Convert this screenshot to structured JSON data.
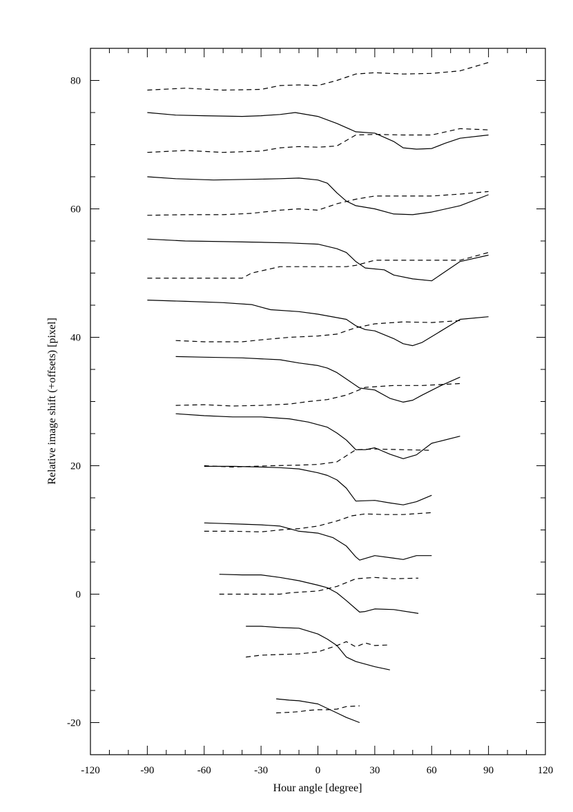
{
  "chart_data": {
    "type": "line",
    "title": "",
    "xlabel": "Hour angle [degree]",
    "ylabel": "Relative image shift (+offsets) [pixel]",
    "xlim": [
      -120,
      120
    ],
    "ylim": [
      -25,
      85
    ],
    "x_ticks": [
      "-120",
      "-90",
      "-60",
      "-30",
      "0",
      "30",
      "60",
      "90",
      "120"
    ],
    "y_ticks": [
      "-20",
      "0",
      "20",
      "40",
      "60",
      "80"
    ],
    "grid": false,
    "legend": "none",
    "series": [
      {
        "style": "dashed",
        "points": [
          [
            -90,
            78.5
          ],
          [
            -70,
            78.8
          ],
          [
            -50,
            78.5
          ],
          [
            -30,
            78.6
          ],
          [
            -20,
            79.2
          ],
          [
            -10,
            79.3
          ],
          [
            0,
            79.2
          ],
          [
            10,
            80
          ],
          [
            20,
            81
          ],
          [
            30,
            81.2
          ],
          [
            45,
            81
          ],
          [
            60,
            81.1
          ],
          [
            75,
            81.5
          ],
          [
            90,
            82.8
          ]
        ]
      },
      {
        "style": "solid",
        "points": [
          [
            -90,
            75
          ],
          [
            -75,
            74.6
          ],
          [
            -60,
            74.5
          ],
          [
            -40,
            74.4
          ],
          [
            -30,
            74.5
          ],
          [
            -20,
            74.7
          ],
          [
            -12,
            75
          ],
          [
            0,
            74.4
          ],
          [
            10,
            73.3
          ],
          [
            20,
            72
          ],
          [
            30,
            71.8
          ],
          [
            40,
            70.5
          ],
          [
            45,
            69.5
          ],
          [
            52,
            69.3
          ],
          [
            60,
            69.4
          ],
          [
            67,
            70.2
          ],
          [
            75,
            71
          ],
          [
            90,
            71.5
          ]
        ]
      },
      {
        "style": "dashed",
        "points": [
          [
            -90,
            68.8
          ],
          [
            -70,
            69.1
          ],
          [
            -50,
            68.8
          ],
          [
            -30,
            69
          ],
          [
            -20,
            69.5
          ],
          [
            -10,
            69.7
          ],
          [
            0,
            69.6
          ],
          [
            10,
            69.8
          ],
          [
            20,
            71.5
          ],
          [
            30,
            71.6
          ],
          [
            45,
            71.5
          ],
          [
            60,
            71.5
          ],
          [
            75,
            72.5
          ],
          [
            90,
            72.3
          ]
        ]
      },
      {
        "style": "solid",
        "points": [
          [
            -90,
            65
          ],
          [
            -75,
            64.7
          ],
          [
            -55,
            64.5
          ],
          [
            -35,
            64.6
          ],
          [
            -20,
            64.7
          ],
          [
            -10,
            64.8
          ],
          [
            0,
            64.5
          ],
          [
            5,
            64
          ],
          [
            10,
            62.5
          ],
          [
            15,
            61.2
          ],
          [
            20,
            60.5
          ],
          [
            30,
            60
          ],
          [
            40,
            59.2
          ],
          [
            50,
            59.1
          ],
          [
            60,
            59.5
          ],
          [
            75,
            60.5
          ],
          [
            90,
            62.2
          ]
        ]
      },
      {
        "style": "dashed",
        "points": [
          [
            -90,
            59
          ],
          [
            -70,
            59.1
          ],
          [
            -50,
            59.1
          ],
          [
            -35,
            59.3
          ],
          [
            -20,
            59.8
          ],
          [
            -10,
            60
          ],
          [
            0,
            59.8
          ],
          [
            10,
            60.8
          ],
          [
            20,
            61.5
          ],
          [
            30,
            62
          ],
          [
            45,
            62
          ],
          [
            60,
            62
          ],
          [
            75,
            62.3
          ],
          [
            90,
            62.7
          ]
        ]
      },
      {
        "style": "solid",
        "points": [
          [
            -90,
            55.3
          ],
          [
            -70,
            55
          ],
          [
            -50,
            54.9
          ],
          [
            -30,
            54.8
          ],
          [
            -15,
            54.7
          ],
          [
            0,
            54.5
          ],
          [
            10,
            53.8
          ],
          [
            15,
            53.2
          ],
          [
            20,
            51.8
          ],
          [
            25,
            50.8
          ],
          [
            35,
            50.5
          ],
          [
            40,
            49.7
          ],
          [
            50,
            49.1
          ],
          [
            60,
            48.8
          ],
          [
            65,
            49.8
          ],
          [
            75,
            51.8
          ],
          [
            90,
            52.8
          ]
        ]
      },
      {
        "style": "dashed",
        "points": [
          [
            -90,
            49.2
          ],
          [
            -70,
            49.2
          ],
          [
            -50,
            49.2
          ],
          [
            -40,
            49.2
          ],
          [
            -35,
            50
          ],
          [
            -20,
            51
          ],
          [
            0,
            51
          ],
          [
            15,
            51
          ],
          [
            20,
            51.2
          ],
          [
            30,
            52
          ],
          [
            45,
            52
          ],
          [
            60,
            52
          ],
          [
            75,
            52
          ],
          [
            90,
            53.2
          ]
        ]
      },
      {
        "style": "solid",
        "points": [
          [
            -90,
            45.8
          ],
          [
            -70,
            45.6
          ],
          [
            -50,
            45.4
          ],
          [
            -35,
            45.1
          ],
          [
            -25,
            44.3
          ],
          [
            -10,
            44
          ],
          [
            0,
            43.6
          ],
          [
            15,
            42.8
          ],
          [
            20,
            41.8
          ],
          [
            25,
            41.2
          ],
          [
            30,
            41
          ],
          [
            40,
            39.8
          ],
          [
            45,
            39
          ],
          [
            50,
            38.7
          ],
          [
            55,
            39.2
          ],
          [
            65,
            41
          ],
          [
            75,
            42.8
          ],
          [
            90,
            43.2
          ]
        ]
      },
      {
        "style": "dashed",
        "points": [
          [
            -75,
            39.5
          ],
          [
            -60,
            39.3
          ],
          [
            -40,
            39.3
          ],
          [
            -30,
            39.6
          ],
          [
            -15,
            40
          ],
          [
            0,
            40.2
          ],
          [
            10,
            40.5
          ],
          [
            20,
            41.5
          ],
          [
            30,
            42.1
          ],
          [
            45,
            42.4
          ],
          [
            60,
            42.3
          ],
          [
            75,
            42.6
          ]
        ]
      },
      {
        "style": "solid",
        "points": [
          [
            -75,
            37
          ],
          [
            -60,
            36.9
          ],
          [
            -40,
            36.8
          ],
          [
            -20,
            36.5
          ],
          [
            -10,
            36
          ],
          [
            0,
            35.6
          ],
          [
            5,
            35.2
          ],
          [
            10,
            34.5
          ],
          [
            15,
            33.5
          ],
          [
            22,
            32.1
          ],
          [
            30,
            31.8
          ],
          [
            38,
            30.5
          ],
          [
            45,
            29.9
          ],
          [
            50,
            30.2
          ],
          [
            55,
            31
          ],
          [
            65,
            32.5
          ],
          [
            75,
            33.8
          ]
        ]
      },
      {
        "style": "dashed",
        "points": [
          [
            -75,
            29.4
          ],
          [
            -60,
            29.5
          ],
          [
            -45,
            29.3
          ],
          [
            -30,
            29.4
          ],
          [
            -15,
            29.6
          ],
          [
            -5,
            30
          ],
          [
            5,
            30.3
          ],
          [
            15,
            31
          ],
          [
            25,
            32.2
          ],
          [
            40,
            32.5
          ],
          [
            55,
            32.5
          ],
          [
            75,
            32.8
          ]
        ]
      },
      {
        "style": "solid",
        "points": [
          [
            -75,
            28.1
          ],
          [
            -60,
            27.8
          ],
          [
            -45,
            27.6
          ],
          [
            -30,
            27.6
          ],
          [
            -15,
            27.3
          ],
          [
            -5,
            26.8
          ],
          [
            5,
            26
          ],
          [
            10,
            25.1
          ],
          [
            15,
            24
          ],
          [
            20,
            22.5
          ],
          [
            25,
            22.5
          ],
          [
            30,
            22.8
          ],
          [
            38,
            21.8
          ],
          [
            45,
            21.1
          ],
          [
            52,
            21.7
          ],
          [
            60,
            23.5
          ],
          [
            75,
            24.6
          ]
        ]
      },
      {
        "style": "dashed",
        "points": [
          [
            -60,
            20
          ],
          [
            -45,
            19.8
          ],
          [
            -35,
            19.9
          ],
          [
            -25,
            20
          ],
          [
            -10,
            20.1
          ],
          [
            0,
            20.2
          ],
          [
            10,
            20.6
          ],
          [
            20,
            22.5
          ],
          [
            30,
            22.6
          ],
          [
            45,
            22.5
          ],
          [
            60,
            22.4
          ]
        ]
      },
      {
        "style": "solid",
        "points": [
          [
            -60,
            19.9
          ],
          [
            -45,
            19.9
          ],
          [
            -30,
            19.8
          ],
          [
            -20,
            19.7
          ],
          [
            -10,
            19.5
          ],
          [
            0,
            18.9
          ],
          [
            5,
            18.5
          ],
          [
            10,
            17.8
          ],
          [
            15,
            16.5
          ],
          [
            20,
            14.5
          ],
          [
            30,
            14.6
          ],
          [
            38,
            14.2
          ],
          [
            45,
            13.9
          ],
          [
            52,
            14.4
          ],
          [
            60,
            15.4
          ]
        ]
      },
      {
        "style": "dashed",
        "points": [
          [
            -60,
            9.8
          ],
          [
            -45,
            9.8
          ],
          [
            -30,
            9.7
          ],
          [
            -20,
            10
          ],
          [
            -10,
            10.2
          ],
          [
            0,
            10.6
          ],
          [
            10,
            11.4
          ],
          [
            18,
            12.2
          ],
          [
            25,
            12.5
          ],
          [
            35,
            12.4
          ],
          [
            45,
            12.4
          ],
          [
            60,
            12.7
          ]
        ]
      },
      {
        "style": "solid",
        "points": [
          [
            -60,
            11.1
          ],
          [
            -50,
            11
          ],
          [
            -40,
            10.9
          ],
          [
            -30,
            10.8
          ],
          [
            -20,
            10.6
          ],
          [
            -10,
            9.8
          ],
          [
            0,
            9.5
          ],
          [
            8,
            8.8
          ],
          [
            15,
            7.5
          ],
          [
            20,
            5.8
          ],
          [
            22,
            5.3
          ],
          [
            30,
            6
          ],
          [
            40,
            5.6
          ],
          [
            45,
            5.4
          ],
          [
            52,
            6
          ],
          [
            60,
            6
          ]
        ]
      },
      {
        "style": "dashed",
        "points": [
          [
            -52,
            0
          ],
          [
            -40,
            0
          ],
          [
            -30,
            0
          ],
          [
            -20,
            0
          ],
          [
            -15,
            0.2
          ],
          [
            0,
            0.5
          ],
          [
            10,
            1.2
          ],
          [
            20,
            2.4
          ],
          [
            30,
            2.6
          ],
          [
            40,
            2.4
          ],
          [
            53,
            2.5
          ]
        ]
      },
      {
        "style": "solid",
        "points": [
          [
            -52,
            3.1
          ],
          [
            -40,
            3
          ],
          [
            -30,
            3
          ],
          [
            -20,
            2.6
          ],
          [
            -10,
            2.1
          ],
          [
            0,
            1.4
          ],
          [
            5,
            1
          ],
          [
            10,
            0.2
          ],
          [
            15,
            -1
          ],
          [
            22,
            -2.8
          ],
          [
            25,
            -2.7
          ],
          [
            30,
            -2.3
          ],
          [
            40,
            -2.4
          ],
          [
            53,
            -3
          ]
        ]
      },
      {
        "style": "dashed",
        "points": [
          [
            -38,
            -9.8
          ],
          [
            -30,
            -9.5
          ],
          [
            -20,
            -9.4
          ],
          [
            -10,
            -9.3
          ],
          [
            0,
            -9
          ],
          [
            5,
            -8.5
          ],
          [
            10,
            -8
          ],
          [
            15,
            -7.4
          ],
          [
            20,
            -8.2
          ],
          [
            25,
            -7.6
          ],
          [
            30,
            -8
          ],
          [
            38,
            -7.9
          ]
        ]
      },
      {
        "style": "solid",
        "points": [
          [
            -38,
            -5
          ],
          [
            -30,
            -5
          ],
          [
            -20,
            -5.2
          ],
          [
            -10,
            -5.3
          ],
          [
            0,
            -6.2
          ],
          [
            5,
            -7
          ],
          [
            10,
            -8
          ],
          [
            15,
            -9.8
          ],
          [
            20,
            -10.5
          ],
          [
            30,
            -11.3
          ],
          [
            38,
            -11.8
          ]
        ]
      },
      {
        "style": "dashed",
        "points": [
          [
            -22,
            -18.5
          ],
          [
            -15,
            -18.4
          ],
          [
            -10,
            -18.3
          ],
          [
            -5,
            -18.1
          ],
          [
            0,
            -18
          ],
          [
            5,
            -18
          ],
          [
            10,
            -17.9
          ],
          [
            15,
            -17.5
          ],
          [
            22,
            -17.4
          ]
        ]
      },
      {
        "style": "solid",
        "points": [
          [
            -22,
            -16.3
          ],
          [
            -15,
            -16.5
          ],
          [
            -10,
            -16.6
          ],
          [
            0,
            -17.1
          ],
          [
            5,
            -17.8
          ],
          [
            10,
            -18.5
          ],
          [
            15,
            -19.2
          ],
          [
            22,
            -20
          ]
        ]
      }
    ]
  }
}
